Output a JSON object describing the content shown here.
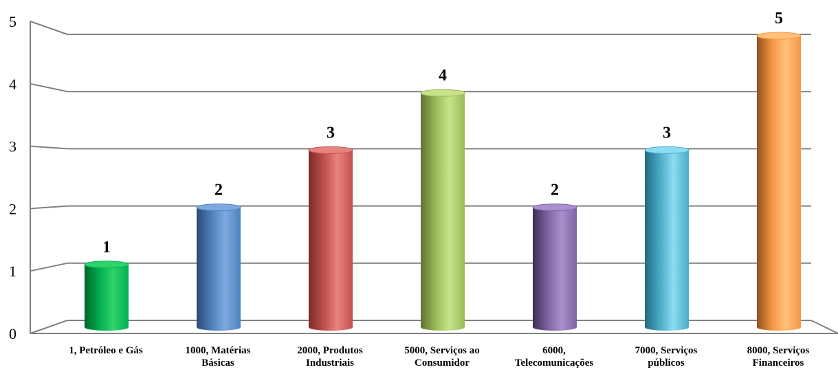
{
  "chart_data": {
    "type": "bar",
    "title": "",
    "xlabel": "",
    "ylabel": "",
    "categories": [
      [
        "1, Petróleo e Gás"
      ],
      [
        "1000, Matérias",
        "Básicas"
      ],
      [
        "2000, Produtos",
        "Industriais"
      ],
      [
        "5000, Serviços ao",
        "Consumidor"
      ],
      [
        "6000,",
        "Telecomunicações"
      ],
      [
        "7000, Serviços",
        "públicos"
      ],
      [
        "8000, Serviços",
        "Financeiros"
      ]
    ],
    "values": [
      1,
      2,
      3,
      4,
      2,
      3,
      5
    ],
    "data_labels": [
      "1",
      "2",
      "3",
      "4",
      "2",
      "3",
      "5"
    ],
    "ylim": [
      0,
      5
    ],
    "yticks": [
      "0",
      "1",
      "2",
      "3",
      "4",
      "5"
    ],
    "grid": true,
    "legend": "none",
    "bar_colors": [
      {
        "light": "#2fd36a",
        "base": "#00b050",
        "dark": "#00652c"
      },
      {
        "light": "#7ea9e0",
        "base": "#4f81bd",
        "dark": "#2a4a75"
      },
      {
        "light": "#e8837f",
        "base": "#c0504d",
        "dark": "#7a2c2a"
      },
      {
        "light": "#c8e28a",
        "base": "#9bbb59",
        "dark": "#5d7530"
      },
      {
        "light": "#a98fcf",
        "base": "#8064a2",
        "dark": "#3e2d55"
      },
      {
        "light": "#8cdcf2",
        "base": "#4bacc6",
        "dark": "#216a7e"
      },
      {
        "light": "#ffc07a",
        "base": "#f79646",
        "dark": "#93501a"
      }
    ],
    "gridline_color": "#808080"
  }
}
